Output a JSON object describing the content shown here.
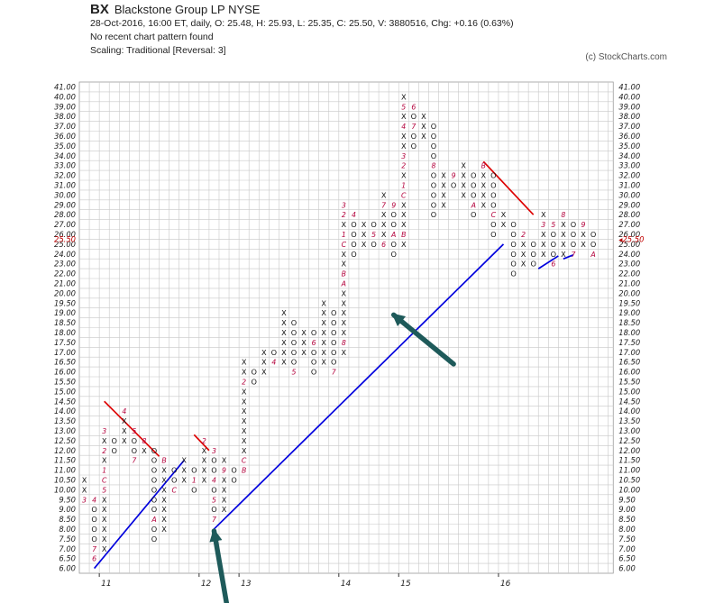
{
  "header": {
    "symbol": "BX",
    "name": "Blackstone Group LP  NYSE",
    "line1": "28-Oct-2016, 16:00 ET, daily, O: 25.48, H: 25.93, L: 25.35, C: 25.50, V: 3880516, Chg: +0.16 (0.63%)",
    "line2": "No recent chart pattern found",
    "line3": "Scaling: Traditional [Reversal: 3]",
    "copyright": "(c) StockCharts.com"
  },
  "chart_data": {
    "type": "point-and-figure",
    "box_scale": [
      "6.00",
      "6.50",
      "7.00",
      "7.50",
      "8.00",
      "8.50",
      "9.00",
      "9.50",
      "10.00",
      "10.50",
      "11.00",
      "11.50",
      "12.00",
      "12.50",
      "13.00",
      "13.50",
      "14.00",
      "14.50",
      "15.00",
      "15.50",
      "16.00",
      "16.50",
      "17.00",
      "17.50",
      "18.00",
      "18.50",
      "19.00",
      "19.50",
      "20.00",
      "21.00",
      "22.00",
      "23.00",
      "24.00",
      "25.00",
      "26.00",
      "27.00",
      "28.00",
      "29.00",
      "30.00",
      "31.00",
      "32.00",
      "33.00",
      "34.00",
      "35.00",
      "36.00",
      "37.00",
      "38.00",
      "39.00",
      "40.00",
      "41.00"
    ],
    "year_labels": [
      {
        "label": "11",
        "col": 2
      },
      {
        "label": "12",
        "col": 12
      },
      {
        "label": "13",
        "col": 16
      },
      {
        "label": "14",
        "col": 26
      },
      {
        "label": "15",
        "col": 32
      },
      {
        "label": "16",
        "col": 42
      }
    ],
    "last_price": "25.50",
    "last_price_box": 33.5,
    "columns": [
      {
        "t": "X",
        "lo": 9.5,
        "hi": 10.5,
        "m": {
          "9.5": "3"
        }
      },
      {
        "t": "O",
        "lo": 6.5,
        "hi": 9.5,
        "m": {
          "9.5": "4",
          "6.5": "6",
          "7.0": "7"
        }
      },
      {
        "t": "X",
        "lo": 7.0,
        "hi": 13.0,
        "m": {
          "10.0": "5",
          "10.5": "C",
          "11.0": "1",
          "12.0": "2",
          "13.0": "3"
        }
      },
      {
        "t": "O",
        "lo": 12.0,
        "hi": 12.5,
        "m": {}
      },
      {
        "t": "X",
        "lo": 12.5,
        "hi": 14.0,
        "m": {
          "14.0": "4"
        }
      },
      {
        "t": "O",
        "lo": 11.5,
        "hi": 13.0,
        "m": {
          "13.0": "5",
          "11.5": "7"
        }
      },
      {
        "t": "X",
        "lo": 12.0,
        "hi": 12.5,
        "m": {
          "12.5": "8"
        }
      },
      {
        "t": "O",
        "lo": 7.5,
        "hi": 12.0,
        "m": {
          "8.5": "A"
        }
      },
      {
        "t": "X",
        "lo": 8.0,
        "hi": 11.5,
        "m": {
          "11.5": "B"
        }
      },
      {
        "t": "O",
        "lo": 10.0,
        "hi": 11.0,
        "m": {
          "10.0": "C"
        }
      },
      {
        "t": "X",
        "lo": 10.5,
        "hi": 11.5,
        "m": {}
      },
      {
        "t": "O",
        "lo": 10.0,
        "hi": 11.0,
        "m": {
          "10.5": "1"
        }
      },
      {
        "t": "X",
        "lo": 10.5,
        "hi": 12.5,
        "m": {
          "12.5": "2"
        }
      },
      {
        "t": "O",
        "lo": 8.5,
        "hi": 12.0,
        "m": {
          "12.0": "3",
          "10.5": "4",
          "9.5": "5",
          "8.5": "7"
        }
      },
      {
        "t": "X",
        "lo": 9.0,
        "hi": 11.5,
        "m": {
          "11.0": "9"
        }
      },
      {
        "t": "O",
        "lo": 10.5,
        "hi": 11.0,
        "m": {}
      },
      {
        "t": "X",
        "lo": 11.0,
        "hi": 16.5,
        "m": {
          "11.0": "B",
          "11.5": "C",
          "15.5": "2"
        }
      },
      {
        "t": "O",
        "lo": 15.5,
        "hi": 16.0,
        "m": {}
      },
      {
        "t": "X",
        "lo": 16.0,
        "hi": 17.0,
        "m": {}
      },
      {
        "t": "O",
        "lo": 16.5,
        "hi": 17.0,
        "m": {
          "16.5": "4"
        }
      },
      {
        "t": "X",
        "lo": 16.5,
        "hi": 19.0,
        "m": {}
      },
      {
        "t": "O",
        "lo": 16.0,
        "hi": 18.5,
        "m": {
          "16.0": "5"
        }
      },
      {
        "t": "X",
        "lo": 17.0,
        "hi": 18.0,
        "m": {}
      },
      {
        "t": "O",
        "lo": 16.0,
        "hi": 18.0,
        "m": {
          "17.5": "6"
        }
      },
      {
        "t": "X",
        "lo": 16.5,
        "hi": 19.5,
        "m": {}
      },
      {
        "t": "O",
        "lo": 16.0,
        "hi": 19.0,
        "m": {
          "16.0": "7"
        }
      },
      {
        "t": "X",
        "lo": 17.0,
        "hi": 29.0,
        "m": {
          "17.5": "8",
          "21.0": "A",
          "22.0": "B",
          "25.0": "C",
          "26.0": "1",
          "28.0": "2",
          "29.0": "3"
        }
      },
      {
        "t": "O",
        "lo": 24.0,
        "hi": 28.0,
        "m": {
          "28.0": "4"
        }
      },
      {
        "t": "X",
        "lo": 25.0,
        "hi": 27.0,
        "m": {}
      },
      {
        "t": "O",
        "lo": 25.0,
        "hi": 27.0,
        "m": {
          "26.0": "5"
        }
      },
      {
        "t": "X",
        "lo": 25.0,
        "hi": 30.0,
        "m": {
          "25.0": "6",
          "29.0": "7"
        }
      },
      {
        "t": "O",
        "lo": 24.0,
        "hi": 29.0,
        "m": {
          "29.0": "9",
          "26.0": "A"
        }
      },
      {
        "t": "X",
        "lo": 25.0,
        "hi": 40.0,
        "m": {
          "26.0": "B",
          "30.0": "C",
          "31.0": "1",
          "33.0": "2",
          "34.0": "3",
          "37.0": "4",
          "39.0": "5"
        }
      },
      {
        "t": "O",
        "lo": 35.0,
        "hi": 39.0,
        "m": {
          "39.0": "6",
          "37.0": "7"
        }
      },
      {
        "t": "X",
        "lo": 36.0,
        "hi": 38.0,
        "m": {}
      },
      {
        "t": "O",
        "lo": 28.0,
        "hi": 37.0,
        "m": {
          "33.0": "8"
        }
      },
      {
        "t": "X",
        "lo": 29.0,
        "hi": 32.0,
        "m": {}
      },
      {
        "t": "O",
        "lo": 31.0,
        "hi": 32.0,
        "m": {
          "32.0": "9"
        }
      },
      {
        "t": "X",
        "lo": 30.0,
        "hi": 33.0,
        "m": {}
      },
      {
        "t": "O",
        "lo": 28.0,
        "hi": 32.0,
        "m": {
          "29.0": "A"
        }
      },
      {
        "t": "X",
        "lo": 29.0,
        "hi": 33.0,
        "m": {
          "33.0": "B"
        }
      },
      {
        "t": "O",
        "lo": 26.0,
        "hi": 32.0,
        "m": {
          "28.0": "C"
        }
      },
      {
        "t": "X",
        "lo": 27.0,
        "hi": 28.0,
        "m": {}
      },
      {
        "t": "O",
        "lo": 22.0,
        "hi": 27.0,
        "m": {
          "28.0": "1"
        }
      },
      {
        "t": "X",
        "lo": 23.0,
        "hi": 26.0,
        "m": {
          "26.0": "2"
        }
      },
      {
        "t": "O",
        "lo": 23.0,
        "hi": 25.0,
        "m": {}
      },
      {
        "t": "X",
        "lo": 24.0,
        "hi": 28.0,
        "m": {
          "27.0": "3"
        }
      },
      {
        "t": "O",
        "lo": 23.0,
        "hi": 27.0,
        "m": {
          "27.0": "5",
          "23.0": "6"
        }
      },
      {
        "t": "X",
        "lo": 24.0,
        "hi": 28.0,
        "m": {
          "28.0": "8"
        }
      },
      {
        "t": "O",
        "lo": 24.0,
        "hi": 27.0,
        "m": {
          "24.0": "7"
        }
      },
      {
        "t": "X",
        "lo": 25.0,
        "hi": 27.0,
        "m": {
          "27.0": "9"
        }
      },
      {
        "t": "O",
        "lo": 24.0,
        "hi": 26.0,
        "m": {
          "24.0": "A"
        }
      }
    ],
    "trend_lines": [
      {
        "kind": "support",
        "color": "#0000dd",
        "from": {
          "col": 1,
          "box": 6.0
        },
        "to": {
          "col": 10,
          "box": 11.5
        }
      },
      {
        "kind": "support",
        "color": "#0000dd",
        "from": {
          "col": 13,
          "box": 8.0
        },
        "to": {
          "col": 42,
          "box": 25.0
        }
      },
      {
        "kind": "support",
        "color": "#0000dd",
        "from": {
          "col": 45.5,
          "box": 22.5
        },
        "to": {
          "col": 47.5,
          "box": 23.8
        }
      },
      {
        "kind": "support",
        "color": "#0000dd",
        "from": {
          "col": 48,
          "box": 23.5
        },
        "to": {
          "col": 49,
          "box": 23.9
        }
      },
      {
        "kind": "resistance",
        "color": "#dd0000",
        "from": {
          "col": 2,
          "box": 14.5
        },
        "to": {
          "col": 7.5,
          "box": 11.7
        }
      },
      {
        "kind": "resistance",
        "color": "#dd0000",
        "from": {
          "col": 11,
          "box": 12.8
        },
        "to": {
          "col": 12.5,
          "box": 12.0
        }
      },
      {
        "kind": "resistance",
        "color": "#dd0000",
        "from": {
          "col": 40,
          "box": 33.4
        },
        "to": {
          "col": 45,
          "box": 28.0
        }
      }
    ],
    "annotations": [
      {
        "kind": "arrow",
        "color": "#1e5a5a",
        "from": {
          "col": 37,
          "box": 16.4
        },
        "to": {
          "col": 31,
          "box": 18.9
        }
      },
      {
        "kind": "arrow",
        "color": "#1e5a5a",
        "from": {
          "col": 14.5,
          "box": 3.5
        },
        "to": {
          "col": 13,
          "box": 7.9
        }
      }
    ]
  }
}
